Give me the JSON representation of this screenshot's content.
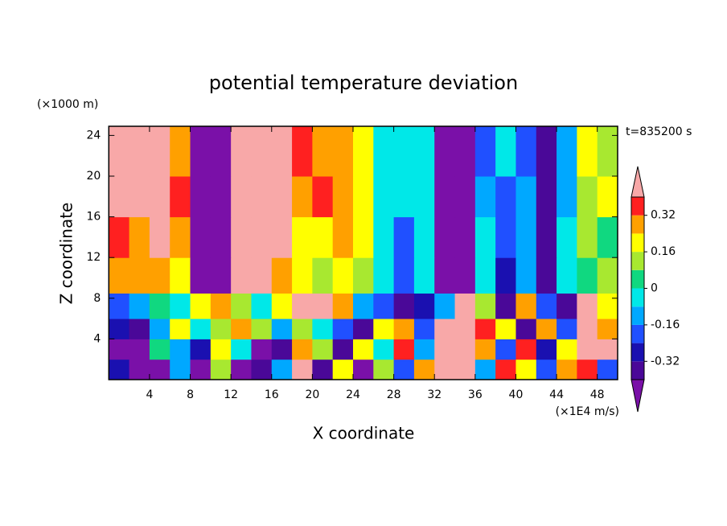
{
  "chart_data": {
    "type": "contour",
    "title": "potential temperature deviation",
    "x_label": "X coordinate",
    "y_label": "Z coordinate",
    "x_unit": "(×1E4 m/s)",
    "y_unit": "(×1000 m)",
    "time_label": "t=835200 s",
    "xlim": [
      0,
      50
    ],
    "ylim": [
      0,
      24.9
    ],
    "xticks": [
      4,
      8,
      12,
      16,
      20,
      24,
      28,
      32,
      36,
      40,
      44,
      48
    ],
    "yticks": [
      4,
      8,
      12,
      16,
      20,
      24
    ],
    "x": [
      1,
      3,
      5,
      7,
      9,
      11,
      13,
      15,
      17,
      19,
      21,
      23,
      25,
      27,
      29,
      31,
      33,
      35,
      37,
      39,
      41,
      43,
      45,
      47,
      49
    ],
    "z": [
      1,
      3,
      5,
      7,
      10,
      14,
      18,
      22
    ],
    "values": [
      [
        -0.3,
        -0.45,
        -0.45,
        -0.1,
        -0.45,
        0.1,
        -0.45,
        -0.35,
        -0.1,
        0.45,
        -0.35,
        0.2,
        -0.45,
        0.1,
        -0.2,
        0.3,
        0.45,
        0.45,
        -0.1,
        0.36,
        0.2,
        -0.2,
        0.3,
        0.36,
        -0.2
      ],
      [
        -0.45,
        -0.45,
        0.05,
        -0.1,
        -0.3,
        0.2,
        -0.05,
        -0.45,
        -0.35,
        0.3,
        0.1,
        -0.35,
        0.2,
        -0.05,
        0.36,
        -0.1,
        0.45,
        0.45,
        0.3,
        -0.2,
        0.36,
        -0.3,
        0.2,
        0.45,
        0.45
      ],
      [
        -0.25,
        -0.35,
        -0.1,
        0.2,
        -0.05,
        0.1,
        0.3,
        0.1,
        -0.1,
        0.1,
        -0.05,
        -0.2,
        -0.35,
        0.2,
        0.3,
        -0.2,
        0.45,
        0.45,
        0.36,
        0.2,
        -0.35,
        0.3,
        -0.2,
        0.45,
        0.3
      ],
      [
        -0.2,
        -0.1,
        0.05,
        -0.05,
        0.2,
        0.3,
        0.1,
        -0.05,
        0.2,
        0.45,
        0.45,
        0.3,
        -0.1,
        -0.2,
        -0.35,
        -0.3,
        -0.1,
        0.45,
        0.1,
        -0.35,
        0.3,
        -0.2,
        -0.35,
        0.45,
        0.2
      ],
      [
        0.3,
        0.25,
        0.3,
        0.2,
        -0.45,
        -0.45,
        0.45,
        0.45,
        0.3,
        0.2,
        0.12,
        0.2,
        0.12,
        -0.05,
        -0.2,
        -0.05,
        -0.45,
        -0.45,
        -0.05,
        -0.3,
        -0.12,
        -0.35,
        -0.05,
        0.05,
        0.12
      ],
      [
        0.36,
        0.3,
        0.45,
        0.3,
        -0.45,
        -0.45,
        0.45,
        0.45,
        0.45,
        0.2,
        0.2,
        0.28,
        0.2,
        -0.05,
        -0.2,
        -0.05,
        -0.45,
        -0.45,
        -0.05,
        -0.2,
        -0.1,
        -0.35,
        -0.05,
        0.12,
        0.05
      ],
      [
        0.45,
        0.45,
        0.45,
        0.36,
        -0.45,
        -0.45,
        0.45,
        0.45,
        0.45,
        0.3,
        0.36,
        0.3,
        0.2,
        -0.05,
        -0.05,
        -0.05,
        -0.45,
        -0.45,
        -0.1,
        -0.2,
        -0.1,
        -0.35,
        -0.1,
        0.1,
        0.2
      ],
      [
        0.45,
        0.45,
        0.45,
        0.3,
        -0.45,
        -0.45,
        0.45,
        0.45,
        0.45,
        0.36,
        0.3,
        0.25,
        0.2,
        -0.05,
        -0.05,
        -0.05,
        -0.45,
        -0.45,
        -0.2,
        -0.05,
        -0.2,
        -0.35,
        -0.1,
        0.2,
        0.1
      ]
    ],
    "levels": [
      -0.4,
      -0.32,
      -0.24,
      -0.16,
      -0.08,
      0,
      0.08,
      0.16,
      0.24,
      0.32,
      0.4
    ],
    "colors": [
      "#7a10a8",
      "#4a0898",
      "#1a10b0",
      "#2050ff",
      "#00a8ff",
      "#00e8e8",
      "#10d880",
      "#a8e830",
      "#ffff00",
      "#ffa000",
      "#ff2020",
      "#f8a8a8"
    ],
    "colorbar_ticks": [
      -0.32,
      -0.16,
      0,
      0.16,
      0.32
    ]
  }
}
